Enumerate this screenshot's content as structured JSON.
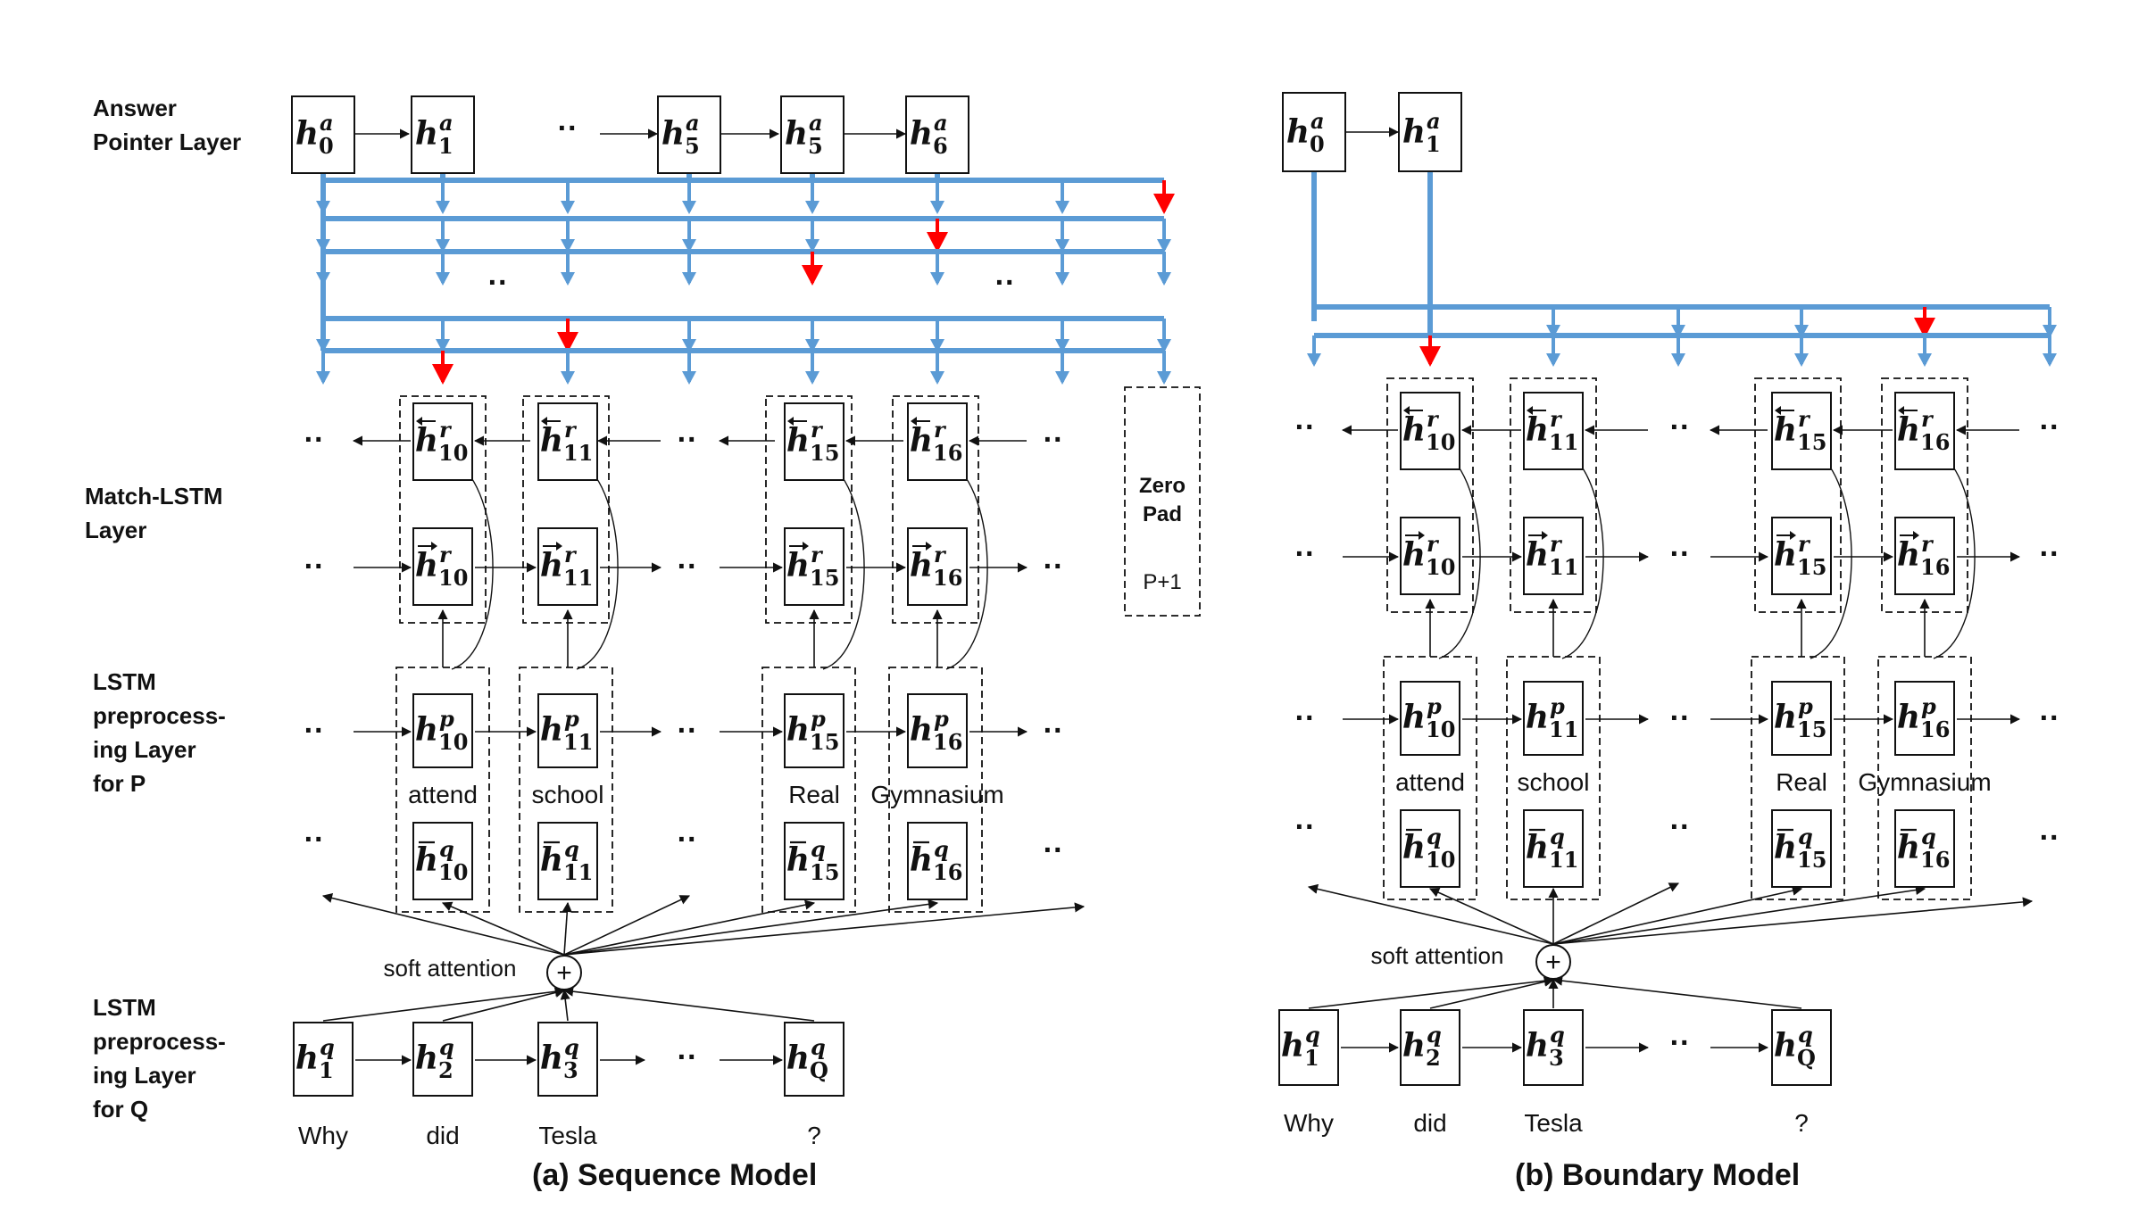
{
  "labels": {
    "answer_layer": "Answer\nPointer Layer",
    "match_layer": "Match-LSTM\nLayer",
    "lstm_p_layer": "LSTM\npreprocess-\ning Layer\nfor P",
    "lstm_q_layer": "LSTM\npreprocess-\ning Layer\nfor Q"
  },
  "captions": {
    "sequence": "(a) Sequence Model",
    "boundary": "(b) Boundary Model"
  },
  "sequence_model": {
    "answer_states": [
      {
        "base": "h",
        "sup": "a",
        "sub": "0"
      },
      {
        "base": "h",
        "sup": "a",
        "sub": "1"
      },
      {
        "base": "h",
        "sup": "a",
        "sub": "5"
      },
      {
        "base": "h",
        "sup": "a",
        "sub": "5"
      },
      {
        "base": "h",
        "sup": "a",
        "sub": "6"
      }
    ],
    "zero_pad": {
      "line1": "Zero",
      "line2": "Pad",
      "index": "P+1"
    },
    "passage_columns": [
      {
        "index": "10",
        "word": "attend"
      },
      {
        "index": "11",
        "word": "school"
      },
      {
        "index": "15",
        "word": "Real"
      },
      {
        "index": "16",
        "word": "Gymnasium"
      }
    ],
    "question_states": [
      {
        "sub": "1",
        "word": "Why"
      },
      {
        "sub": "2",
        "word": "did"
      },
      {
        "sub": "3",
        "word": "Tesla"
      },
      {
        "sub": "Q",
        "word": "?"
      }
    ],
    "attention_label": "soft attention"
  },
  "boundary_model": {
    "answer_states": [
      {
        "base": "h",
        "sup": "a",
        "sub": "0"
      },
      {
        "base": "h",
        "sup": "a",
        "sub": "1"
      }
    ],
    "passage_columns": [
      {
        "index": "10",
        "word": "attend"
      },
      {
        "index": "11",
        "word": "school"
      },
      {
        "index": "15",
        "word": "Real"
      },
      {
        "index": "16",
        "word": "Gymnasium"
      }
    ],
    "question_states": [
      {
        "sub": "1",
        "word": "Why"
      },
      {
        "sub": "2",
        "word": "did"
      },
      {
        "sub": "3",
        "word": "Tesla"
      },
      {
        "sub": "Q",
        "word": "?"
      }
    ],
    "attention_label": "soft attention"
  },
  "ellipsis": "··",
  "plus_symbol": "+",
  "colors": {
    "pointer": "#5b9bd5",
    "selected": "#ff0000",
    "ink": "#111111"
  }
}
